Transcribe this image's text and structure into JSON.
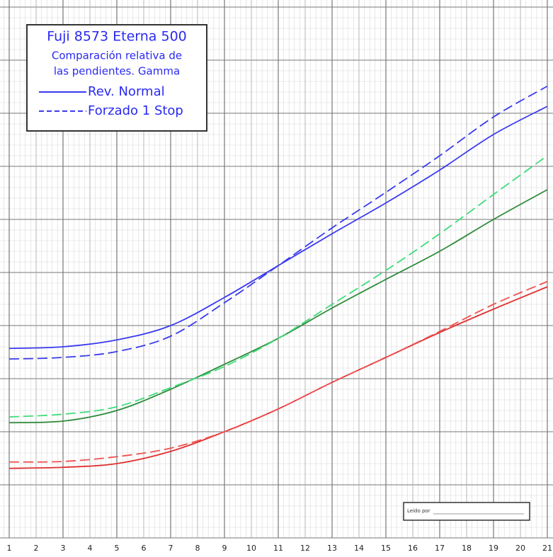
{
  "chart_data": {
    "type": "line",
    "title": "Fuji 8573 Eterna 500",
    "subtitle": [
      "Comparación relativa de",
      "las pendientes. Gamma"
    ],
    "annotation": "Leído por",
    "x": [
      1,
      3,
      5,
      7,
      9,
      11,
      13,
      15,
      17,
      19,
      21
    ],
    "xlim": [
      1,
      21
    ],
    "xticks": [
      1,
      2,
      3,
      4,
      5,
      6,
      7,
      8,
      9,
      10,
      11,
      12,
      13,
      14,
      15,
      16,
      17,
      18,
      19,
      20,
      21
    ],
    "ylim": [
      0,
      10
    ],
    "grid": true,
    "series": [
      {
        "name": "Rev. Normal",
        "color": "#3a3af0",
        "dashed": false,
        "values": [
          3.57,
          3.6,
          3.73,
          4.0,
          4.53,
          5.13,
          5.73,
          6.31,
          6.93,
          7.6,
          8.13
        ]
      },
      {
        "name": "Forzado 1 Stop",
        "color": "#3a3af0",
        "dashed": true,
        "values": [
          3.37,
          3.4,
          3.51,
          3.8,
          4.43,
          5.13,
          5.84,
          6.51,
          7.2,
          7.93,
          8.51
        ]
      },
      {
        "color": "#2e8b3a",
        "dashed": false,
        "values": [
          2.17,
          2.2,
          2.4,
          2.8,
          3.27,
          3.76,
          4.33,
          4.87,
          5.4,
          6.0,
          6.56
        ]
      },
      {
        "color": "#3ddc7a",
        "dashed": true,
        "values": [
          2.28,
          2.33,
          2.47,
          2.83,
          3.23,
          3.76,
          4.4,
          5.04,
          5.73,
          6.47,
          7.2
        ]
      },
      {
        "color": "#e03030",
        "dashed": false,
        "values": [
          1.31,
          1.33,
          1.4,
          1.63,
          2.0,
          2.43,
          2.93,
          3.4,
          3.87,
          4.31,
          4.73
        ]
      },
      {
        "color": "#f05050",
        "dashed": true,
        "values": [
          1.43,
          1.44,
          1.53,
          1.69,
          2.0,
          2.43,
          2.93,
          3.4,
          3.89,
          4.4,
          4.83
        ]
      }
    ]
  }
}
